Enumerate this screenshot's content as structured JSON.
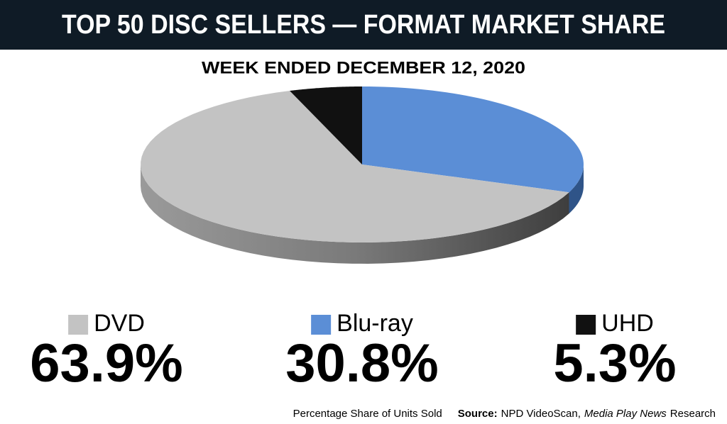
{
  "chart_data": {
    "type": "pie3d",
    "title": "TOP 50 DISC SELLERS — FORMAT MARKET SHARE",
    "subtitle": "WEEK ENDED DECEMBER 12, 2020",
    "categories": [
      "DVD",
      "Blu-ray",
      "UHD"
    ],
    "values": [
      63.9,
      30.8,
      5.3
    ],
    "value_labels": [
      "63.9%",
      "30.8%",
      "5.3%"
    ],
    "colors": [
      "#c3c3c3",
      "#5b8ed6",
      "#111111"
    ],
    "note": "Percentage Share of Units Sold",
    "source": {
      "label": "Source:",
      "text": "NPD VideoScan,",
      "publication": "Media Play News",
      "suffix": "Research"
    }
  }
}
